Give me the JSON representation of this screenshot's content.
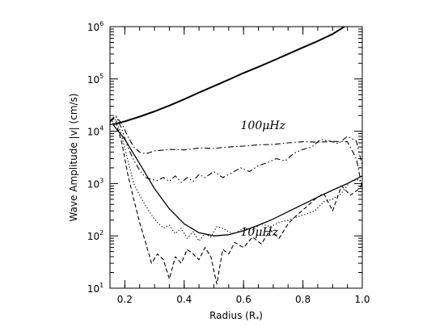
{
  "chart_data": {
    "type": "line",
    "title": "",
    "xlabel": "Radius (R",
    "xlabel_sub": "*",
    "xlabel_tail": ")",
    "ylabel": "Wave Amplitude |v| (cm/s)",
    "xlim": [
      0.15,
      1.0
    ],
    "ylim": [
      10,
      1000000
    ],
    "yscale": "log",
    "grid": false,
    "x_ticks": [
      0.2,
      0.4,
      0.6,
      0.8,
      1.0
    ],
    "x_tick_labels": [
      "0.2",
      "0.4",
      "0.6",
      "0.8",
      "1.0"
    ],
    "y_ticks": [
      {
        "base": "10",
        "exp": "1",
        "value": 10
      },
      {
        "base": "10",
        "exp": "2",
        "value": 100
      },
      {
        "base": "10",
        "exp": "3",
        "value": 1000
      },
      {
        "base": "10",
        "exp": "4",
        "value": 10000
      },
      {
        "base": "10",
        "exp": "5",
        "value": 100000
      },
      {
        "base": "10",
        "exp": "6",
        "value": 1000000
      }
    ],
    "annotations": [
      {
        "text": "100μHz",
        "x": 0.59,
        "y": 11000
      },
      {
        "text": "10μHz",
        "x": 0.59,
        "y": 100
      }
    ],
    "series": [
      {
        "style": "solid-thick",
        "x": [
          0.16,
          0.2,
          0.25,
          0.3,
          0.35,
          0.4,
          0.45,
          0.5,
          0.55,
          0.6,
          0.65,
          0.7,
          0.75,
          0.8,
          0.85,
          0.9,
          0.94
        ],
        "y": [
          13500,
          15500,
          19000,
          24000,
          31000,
          41000,
          55000,
          73000,
          97000,
          130000,
          170000,
          225000,
          300000,
          400000,
          530000,
          720000,
          1000000
        ]
      },
      {
        "style": "solid",
        "x": [
          0.16,
          0.2,
          0.25,
          0.3,
          0.35,
          0.4,
          0.45,
          0.5,
          0.55,
          0.6,
          0.65,
          0.7,
          0.75,
          0.8,
          0.85,
          0.9,
          0.95,
          1.0
        ],
        "y": [
          13500,
          7000,
          2400,
          800,
          330,
          170,
          115,
          100,
          105,
          125,
          160,
          210,
          290,
          400,
          550,
          750,
          1000,
          1400
        ]
      },
      {
        "style": "dash-dot",
        "x": [
          0.15,
          0.17,
          0.19,
          0.21,
          0.23,
          0.25,
          0.27,
          0.3,
          0.35,
          0.4,
          0.45,
          0.5,
          0.55,
          0.6,
          0.65,
          0.7,
          0.75,
          0.8,
          0.85,
          0.9,
          0.95,
          0.98,
          1.0
        ],
        "y": [
          15000,
          19000,
          14000,
          8000,
          5000,
          4000,
          3700,
          4200,
          4500,
          4400,
          4800,
          4700,
          5000,
          5200,
          5500,
          5600,
          6000,
          6300,
          6200,
          6400,
          6300,
          3000,
          800
        ]
      },
      {
        "style": "dash-dot-dot",
        "x": [
          0.15,
          0.17,
          0.19,
          0.21,
          0.23,
          0.25,
          0.27,
          0.29,
          0.31,
          0.33,
          0.35,
          0.37,
          0.39,
          0.41,
          0.43,
          0.45,
          0.47,
          0.5,
          0.53,
          0.56,
          0.59,
          0.62,
          0.65,
          0.68,
          0.71,
          0.74,
          0.77,
          0.8,
          0.83,
          0.86,
          0.89,
          0.92,
          0.95,
          0.98,
          1.0
        ],
        "y": [
          16000,
          20000,
          11000,
          5000,
          2800,
          1800,
          1300,
          1200,
          1150,
          1300,
          1100,
          1400,
          1050,
          1300,
          1100,
          1500,
          1300,
          1700,
          1300,
          1600,
          2000,
          1700,
          2200,
          2500,
          3000,
          2700,
          3800,
          4500,
          5000,
          7000,
          6500,
          5800,
          8000,
          6500,
          2200
        ]
      },
      {
        "style": "dotted",
        "x": [
          0.15,
          0.17,
          0.19,
          0.21,
          0.23,
          0.25,
          0.27,
          0.29,
          0.31,
          0.33,
          0.35,
          0.37,
          0.39,
          0.41,
          0.43,
          0.45,
          0.47,
          0.49,
          0.51,
          0.53,
          0.55,
          0.57,
          0.6,
          0.63,
          0.66,
          0.69,
          0.72,
          0.75,
          0.78,
          0.81,
          0.84,
          0.87,
          0.9,
          0.93,
          0.96,
          0.99,
          1.0
        ],
        "y": [
          14000,
          17000,
          8000,
          2800,
          1000,
          600,
          380,
          250,
          180,
          140,
          160,
          110,
          140,
          90,
          120,
          80,
          110,
          95,
          150,
          140,
          120,
          110,
          140,
          130,
          170,
          150,
          180,
          200,
          230,
          260,
          300,
          450,
          500,
          650,
          1100,
          1200,
          900
        ]
      },
      {
        "style": "dashed",
        "x": [
          0.15,
          0.17,
          0.19,
          0.21,
          0.23,
          0.25,
          0.27,
          0.29,
          0.31,
          0.33,
          0.35,
          0.37,
          0.39,
          0.41,
          0.43,
          0.45,
          0.47,
          0.49,
          0.51,
          0.53,
          0.55,
          0.57,
          0.6,
          0.63,
          0.66,
          0.69,
          0.72,
          0.75,
          0.78,
          0.81,
          0.84,
          0.87,
          0.9,
          0.93,
          0.96,
          0.99,
          1.0
        ],
        "y": [
          13000,
          15000,
          6000,
          1500,
          500,
          180,
          75,
          30,
          45,
          35,
          15,
          40,
          30,
          55,
          45,
          35,
          60,
          40,
          12,
          55,
          45,
          75,
          60,
          95,
          70,
          130,
          90,
          170,
          250,
          350,
          500,
          650,
          300,
          900,
          600,
          800,
          1000
        ]
      }
    ]
  }
}
